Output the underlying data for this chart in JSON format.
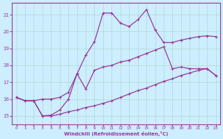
{
  "background_color": "#cceeff",
  "grid_color": "#b0d8cc",
  "line_color": "#993399",
  "xlabel": "Windchill (Refroidissement éolien,°C)",
  "xlim": [
    -0.5,
    23.5
  ],
  "ylim": [
    14.5,
    21.7
  ],
  "yticks": [
    15,
    16,
    17,
    18,
    19,
    20,
    21
  ],
  "xticks": [
    0,
    1,
    2,
    3,
    4,
    5,
    6,
    7,
    8,
    9,
    10,
    11,
    12,
    13,
    14,
    15,
    16,
    17,
    18,
    19,
    20,
    21,
    22,
    23
  ],
  "line_top_x": [
    0,
    1,
    2,
    3,
    4,
    5,
    6,
    7,
    8,
    9,
    10,
    11,
    12,
    13,
    14,
    15,
    16,
    17,
    18,
    19,
    20,
    21,
    22,
    23
  ],
  "line_top_y": [
    16.1,
    15.9,
    15.9,
    16.0,
    16.0,
    16.1,
    16.4,
    17.5,
    18.6,
    19.4,
    21.1,
    21.1,
    20.5,
    20.3,
    20.7,
    21.3,
    20.1,
    19.35,
    19.35,
    19.5,
    19.6,
    19.7,
    19.75,
    19.7
  ],
  "line_mid_x": [
    0,
    1,
    2,
    3,
    4,
    5,
    6,
    7,
    8,
    9,
    10,
    11,
    12,
    13,
    14,
    15,
    16,
    17,
    18,
    19,
    20,
    21,
    22,
    23
  ],
  "line_mid_y": [
    16.1,
    15.9,
    15.9,
    15.0,
    15.05,
    15.35,
    16.0,
    17.5,
    16.6,
    17.7,
    17.9,
    18.0,
    18.2,
    18.3,
    18.5,
    18.7,
    18.9,
    19.1,
    17.8,
    17.9,
    17.8,
    17.8,
    17.8,
    17.4
  ],
  "line_bot_x": [
    0,
    1,
    2,
    3,
    4,
    5,
    6,
    7,
    8,
    9,
    10,
    11,
    12,
    13,
    14,
    15,
    16,
    17,
    18,
    19,
    20,
    21,
    22,
    23
  ],
  "line_bot_y": [
    16.1,
    15.9,
    15.9,
    15.0,
    15.0,
    15.1,
    15.25,
    15.35,
    15.5,
    15.6,
    15.75,
    15.9,
    16.1,
    16.3,
    16.5,
    16.65,
    16.85,
    17.05,
    17.2,
    17.4,
    17.55,
    17.7,
    17.8,
    17.4
  ]
}
